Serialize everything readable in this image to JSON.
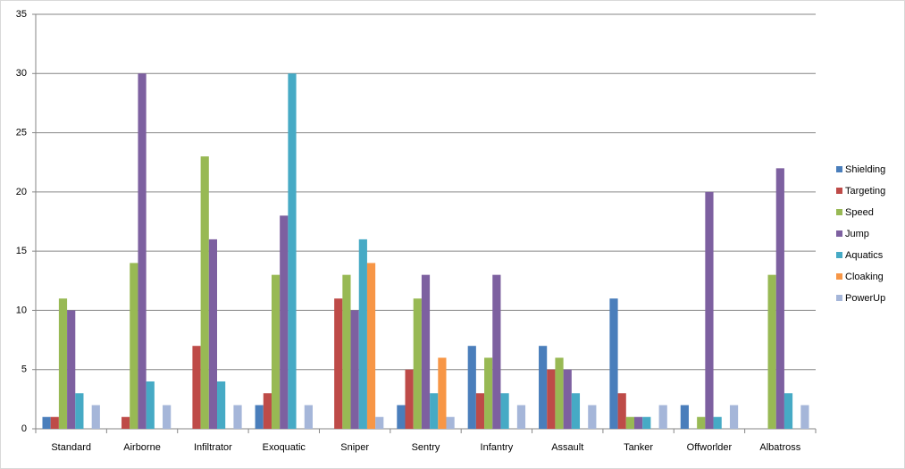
{
  "chart_data": {
    "type": "bar",
    "categories": [
      "Standard",
      "Airborne",
      "Infiltrator",
      "Exoquatic",
      "Sniper",
      "Sentry",
      "Infantry",
      "Assault",
      "Tanker",
      "Offworlder",
      "Albatross"
    ],
    "series": [
      {
        "name": "Shielding",
        "color": "#4a7ebb",
        "values": [
          1,
          0,
          0,
          2,
          0,
          2,
          7,
          7,
          11,
          2,
          0
        ]
      },
      {
        "name": "Targeting",
        "color": "#be4b48",
        "values": [
          1,
          1,
          7,
          3,
          11,
          5,
          3,
          5,
          3,
          0,
          0
        ]
      },
      {
        "name": "Speed",
        "color": "#98b954",
        "values": [
          11,
          14,
          23,
          13,
          13,
          11,
          6,
          6,
          1,
          1,
          13
        ]
      },
      {
        "name": "Jump",
        "color": "#7d60a0",
        "values": [
          10,
          30,
          16,
          18,
          10,
          13,
          13,
          5,
          1,
          20,
          22
        ]
      },
      {
        "name": "Aquatics",
        "color": "#46aac5",
        "values": [
          3,
          4,
          4,
          30,
          16,
          3,
          3,
          3,
          1,
          1,
          3
        ]
      },
      {
        "name": "Cloaking",
        "color": "#f79646",
        "values": [
          0,
          0,
          0,
          0,
          14,
          6,
          0,
          0,
          0,
          0,
          0
        ]
      },
      {
        "name": "PowerUp",
        "color": "#a5b6d9",
        "values": [
          2,
          2,
          2,
          2,
          1,
          1,
          2,
          2,
          2,
          2,
          2
        ]
      }
    ],
    "ylim": [
      0,
      35
    ],
    "yticks": [
      0,
      5,
      10,
      15,
      20,
      25,
      30,
      35
    ],
    "grid": true,
    "legend": "right"
  }
}
